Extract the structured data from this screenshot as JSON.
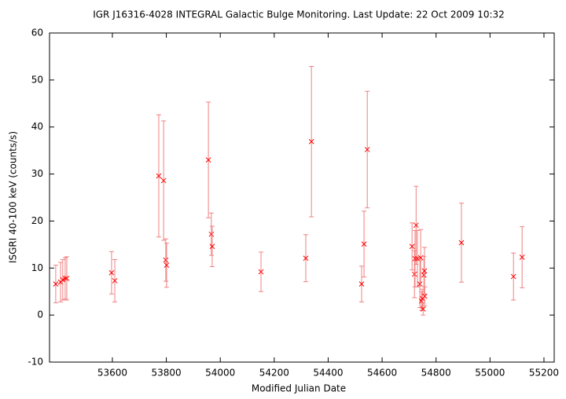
{
  "chart_data": {
    "type": "scatter",
    "title": "IGR J16316-4028   INTEGRAL Galactic Bulge Monitoring.  Last Update: 22 Oct 2009 10:32",
    "xlabel": "Modified Julian Date",
    "ylabel": "ISGRI 40-100 keV (counts/s)",
    "xlim": [
      53367,
      55238
    ],
    "ylim": [
      -10,
      60
    ],
    "xticks": [
      53600,
      53800,
      54000,
      54200,
      54400,
      54600,
      54800,
      55000,
      55200
    ],
    "yticks": [
      -10,
      0,
      10,
      20,
      30,
      40,
      50,
      60
    ],
    "color": "#ff0000",
    "error_color": "#f08080",
    "series": [
      {
        "x": [
          53390,
          53408,
          53416,
          53425,
          53431,
          53597,
          53609,
          53772,
          53790,
          53798,
          53801,
          53956,
          53967,
          53970,
          54151,
          54317,
          54338,
          54524,
          54533,
          54545,
          54711,
          54720,
          54722,
          54726,
          54731,
          54740,
          54743,
          54746,
          54749,
          54752,
          54755,
          54757,
          54758,
          54894,
          55087,
          55119
        ],
        "values": [
          6.6,
          7.0,
          7.5,
          7.8,
          7.8,
          9.0,
          7.3,
          29.6,
          28.6,
          11.7,
          10.6,
          33.0,
          17.2,
          14.6,
          9.2,
          12.1,
          36.9,
          6.6,
          15.1,
          35.2,
          14.6,
          8.7,
          12.0,
          19.1,
          12.0,
          6.6,
          12.2,
          3.0,
          3.5,
          1.3,
          8.5,
          9.4,
          4.0,
          15.4,
          8.2,
          12.3
        ],
        "errors": [
          4.0,
          4.2,
          4.3,
          4.4,
          4.6,
          4.5,
          4.5,
          13.0,
          12.7,
          4.5,
          4.7,
          12.3,
          4.5,
          4.3,
          4.2,
          5.0,
          16.0,
          3.8,
          7.0,
          12.4,
          5.0,
          5.0,
          6.0,
          8.3,
          6.0,
          5.0,
          6.0,
          2.0,
          2.0,
          1.3,
          4.0,
          5.0,
          2.0,
          8.4,
          5.0,
          6.5
        ]
      }
    ]
  }
}
